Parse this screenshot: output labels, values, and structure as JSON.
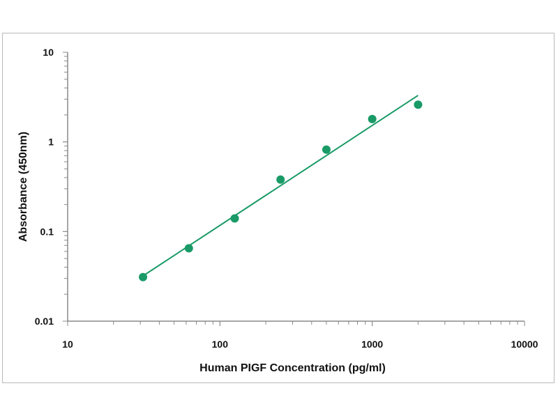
{
  "chart_data": {
    "type": "scatter",
    "title": "",
    "xlabel": "Human PIGF Concentration (pg/ml)",
    "ylabel": "Absorbance (450nm)",
    "x_scale": "log",
    "y_scale": "log",
    "xlim": [
      10,
      10000
    ],
    "ylim": [
      0.01,
      10
    ],
    "x_ticks": [
      "10",
      "100",
      "1000",
      "10000"
    ],
    "y_ticks": [
      "0.01",
      "0.1",
      "1",
      "10"
    ],
    "grid": false,
    "legend": "none",
    "colors": {
      "marker": "#1a9a66",
      "line": "#1a9a66",
      "axis": "#8a8a8a"
    },
    "series": [
      {
        "x": [
          31.25,
          62.5,
          125,
          250,
          500,
          1000,
          2000
        ],
        "y": [
          0.031,
          0.065,
          0.14,
          0.38,
          0.82,
          1.8,
          2.6
        ]
      }
    ],
    "fit_line": {
      "x": [
        31.25,
        2000
      ],
      "y": [
        0.032,
        3.3
      ]
    }
  }
}
